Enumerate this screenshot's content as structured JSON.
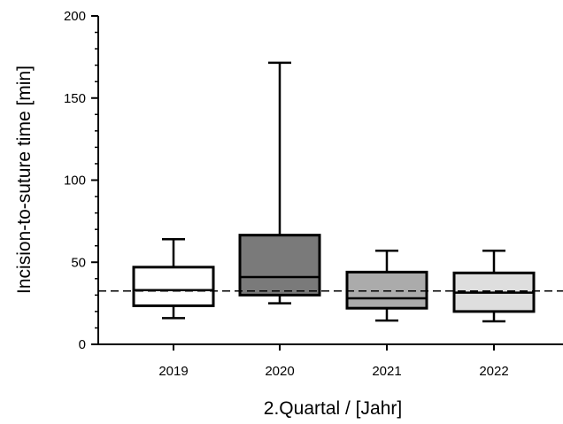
{
  "chart_data": {
    "type": "box",
    "xlabel": "2.Quartal / [Jahr]",
    "ylabel": "Incision-to-suture time [min]",
    "ylim": [
      0,
      200
    ],
    "yticks": [
      0,
      50,
      100,
      150,
      200
    ],
    "categories": [
      "2019",
      "2020",
      "2021",
      "2022"
    ],
    "boxes": [
      {
        "category": "2019",
        "whisker_low": 16,
        "q1": 23.5,
        "median": 33,
        "q3": 47,
        "whisker_high": 64,
        "fill": "#ffffff"
      },
      {
        "category": "2020",
        "whisker_low": 25,
        "q1": 30,
        "median": 41,
        "q3": 66.5,
        "whisker_high": 171.5,
        "fill": "#7a7a7a"
      },
      {
        "category": "2021",
        "whisker_low": 14.5,
        "q1": 22,
        "median": 28,
        "q3": 44,
        "whisker_high": 57,
        "fill": "#ababab"
      },
      {
        "category": "2022",
        "whisker_low": 14,
        "q1": 20,
        "median": 31.5,
        "q3": 43.5,
        "whisker_high": 57,
        "fill": "#dedede"
      }
    ],
    "reference_line": {
      "value": 32.5,
      "style": "dashed"
    },
    "grid": false,
    "legend": "none"
  }
}
